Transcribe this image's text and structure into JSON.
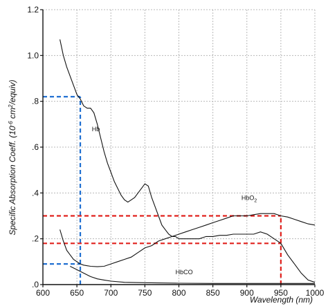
{
  "chart_data": {
    "type": "line",
    "xlabel": "Wavelength (nm)",
    "ylabel_prefix": "Specific Absorption Coeff. (10",
    "ylabel_exp1": "-6",
    "ylabel_mid": " cm",
    "ylabel_exp2": "2",
    "ylabel_suffix": "/equiv)",
    "xlim": [
      600,
      1000
    ],
    "ylim": [
      0,
      1.2
    ],
    "xticks": [
      {
        "v": 600,
        "label": "600"
      },
      {
        "v": 650,
        "label": "650"
      },
      {
        "v": 700,
        "label": "700"
      },
      {
        "v": 750,
        "label": "750"
      },
      {
        "v": 800,
        "label": "800"
      },
      {
        "v": 850,
        "label": "850"
      },
      {
        "v": 900,
        "label": "900"
      },
      {
        "v": 950,
        "label": "950"
      },
      {
        "v": 1000,
        "label": "1000"
      }
    ],
    "yticks": [
      {
        "v": 0,
        "label": ".0"
      },
      {
        "v": 0.2,
        "label": ".2"
      },
      {
        "v": 0.4,
        "label": ".4"
      },
      {
        "v": 0.6,
        "label": ".6"
      },
      {
        "v": 0.8,
        "label": ".8"
      },
      {
        "v": 1.0,
        "label": "1.0"
      },
      {
        "v": 1.2,
        "label": "1.2"
      }
    ],
    "grid": true,
    "series": [
      {
        "name": "Hb",
        "label_base": "Hb",
        "label_sub": "",
        "label_at": [
          672,
          0.67
        ],
        "color": "#111111",
        "x": [
          625,
          630,
          635,
          640,
          645,
          650,
          655,
          660,
          665,
          670,
          675,
          680,
          685,
          690,
          695,
          700,
          705,
          710,
          715,
          720,
          725,
          730,
          735,
          740,
          745,
          750,
          755,
          760,
          765,
          770,
          775,
          780,
          785,
          790,
          795,
          800,
          810,
          820,
          830,
          840,
          850,
          860,
          870,
          880,
          890,
          900,
          910,
          920,
          930,
          940,
          950,
          960,
          970,
          980,
          990,
          1000
        ],
        "y": [
          1.07,
          1.0,
          0.95,
          0.91,
          0.87,
          0.83,
          0.81,
          0.78,
          0.77,
          0.77,
          0.75,
          0.7,
          0.64,
          0.58,
          0.53,
          0.49,
          0.45,
          0.42,
          0.39,
          0.37,
          0.36,
          0.37,
          0.38,
          0.4,
          0.42,
          0.44,
          0.43,
          0.38,
          0.34,
          0.3,
          0.26,
          0.24,
          0.22,
          0.21,
          0.21,
          0.2,
          0.2,
          0.2,
          0.2,
          0.21,
          0.21,
          0.215,
          0.215,
          0.22,
          0.22,
          0.22,
          0.22,
          0.23,
          0.22,
          0.2,
          0.18,
          0.13,
          0.09,
          0.05,
          0.02,
          0.01
        ]
      },
      {
        "name": "HbO2",
        "label_base": "HbO",
        "label_sub": "2",
        "label_at": [
          892,
          0.37
        ],
        "color": "#111111",
        "x": [
          625,
          630,
          635,
          640,
          645,
          650,
          655,
          660,
          670,
          680,
          690,
          700,
          710,
          720,
          730,
          740,
          750,
          760,
          770,
          780,
          790,
          800,
          810,
          820,
          830,
          840,
          850,
          860,
          870,
          880,
          890,
          900,
          910,
          920,
          930,
          940,
          950,
          960,
          970,
          980,
          990,
          1000
        ],
        "y": [
          0.24,
          0.19,
          0.15,
          0.13,
          0.11,
          0.1,
          0.09,
          0.085,
          0.08,
          0.078,
          0.08,
          0.09,
          0.1,
          0.11,
          0.12,
          0.14,
          0.16,
          0.17,
          0.19,
          0.2,
          0.21,
          0.22,
          0.23,
          0.24,
          0.25,
          0.26,
          0.27,
          0.28,
          0.29,
          0.3,
          0.3,
          0.3,
          0.305,
          0.31,
          0.31,
          0.31,
          0.3,
          0.295,
          0.285,
          0.275,
          0.265,
          0.26
        ]
      },
      {
        "name": "HbCO",
        "label_base": "HbCO",
        "label_sub": "",
        "label_at": [
          795,
          0.045
        ],
        "color": "#111111",
        "x": [
          640,
          650,
          660,
          670,
          680,
          690,
          700,
          720,
          750,
          800,
          850,
          900,
          950,
          1000
        ],
        "y": [
          0.08,
          0.065,
          0.05,
          0.035,
          0.025,
          0.02,
          0.015,
          0.01,
          0.008,
          0.006,
          0.005,
          0.005,
          0.005,
          0.005
        ]
      }
    ],
    "guide_lines": [
      {
        "color": "#1f6fd1",
        "type": "horizontal",
        "y": 0.82,
        "x_from": 600,
        "x_to": 655
      },
      {
        "color": "#1f6fd1",
        "type": "horizontal",
        "y": 0.09,
        "x_from": 600,
        "x_to": 655
      },
      {
        "color": "#1f6fd1",
        "type": "vertical",
        "x": 655,
        "y_from": 0,
        "y_to": 0.82
      },
      {
        "color": "#e0201c",
        "type": "horizontal",
        "y": 0.3,
        "x_from": 600,
        "x_to": 950
      },
      {
        "color": "#e0201c",
        "type": "horizontal",
        "y": 0.18,
        "x_from": 600,
        "x_to": 950
      },
      {
        "color": "#e0201c",
        "type": "vertical",
        "x": 950,
        "y_from": 0,
        "y_to": 0.3
      }
    ]
  }
}
